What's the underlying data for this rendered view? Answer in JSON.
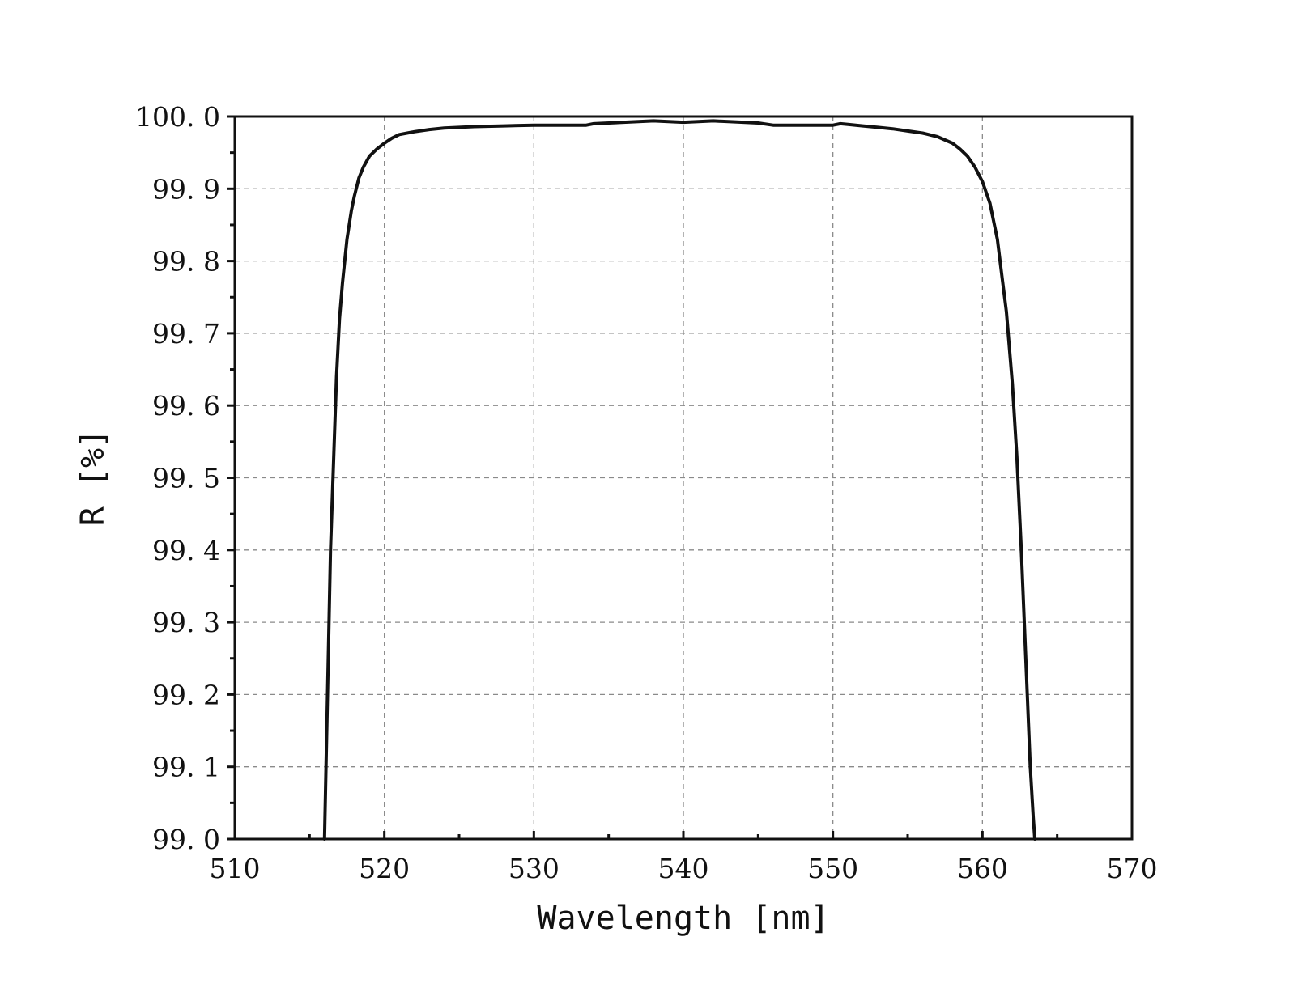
{
  "chart_data": {
    "type": "line",
    "title": "",
    "xlabel": "Wavelength [nm]",
    "ylabel": "R [%]",
    "xlim": [
      510,
      570
    ],
    "ylim": [
      99.0,
      100.0
    ],
    "x_ticks": [
      "510",
      "520",
      "530",
      "540",
      "550",
      "560",
      "570"
    ],
    "y_ticks": [
      "99. 0",
      "99. 1",
      "99. 2",
      "99. 3",
      "99. 4",
      "99. 5",
      "99. 6",
      "99. 7",
      "99. 8",
      "99. 9",
      "100. 0"
    ],
    "grid": true,
    "legend": "none",
    "line_color": "#111111",
    "series": [
      {
        "x": [
          516.0,
          516.2,
          516.4,
          516.6,
          516.8,
          517.0,
          517.2,
          517.5,
          517.8,
          518.0,
          518.3,
          518.6,
          519.0,
          519.5,
          520.0,
          520.5,
          521.0,
          522.0,
          523.0,
          524.0,
          526.0,
          528.0,
          530.0,
          532.0,
          533.5,
          534.0,
          536.0,
          537.0,
          538.0,
          539.0,
          540.0,
          541.0,
          542.0,
          544.0,
          545.0,
          546.0,
          548.0,
          550.0,
          550.5,
          551.0,
          552.0,
          553.0,
          554.0,
          555.0,
          556.0,
          557.0,
          558.0,
          558.5,
          559.0,
          559.5,
          560.0,
          560.5,
          561.0,
          561.3,
          561.6,
          562.0,
          562.3,
          562.6,
          562.8,
          563.0,
          563.2,
          563.4,
          563.5
        ],
        "y": [
          99.0,
          99.2,
          99.4,
          99.52,
          99.64,
          99.72,
          99.77,
          99.83,
          99.87,
          99.89,
          99.915,
          99.93,
          99.945,
          99.955,
          99.963,
          99.97,
          99.975,
          99.979,
          99.982,
          99.984,
          99.986,
          99.987,
          99.988,
          99.988,
          99.988,
          99.99,
          99.992,
          99.993,
          99.994,
          99.993,
          99.992,
          99.993,
          99.994,
          99.992,
          99.991,
          99.988,
          99.988,
          99.988,
          99.99,
          99.989,
          99.987,
          99.985,
          99.983,
          99.98,
          99.977,
          99.972,
          99.963,
          99.955,
          99.945,
          99.93,
          99.91,
          99.88,
          99.83,
          99.78,
          99.73,
          99.63,
          99.53,
          99.4,
          99.3,
          99.2,
          99.1,
          99.03,
          99.0
        ]
      }
    ]
  }
}
